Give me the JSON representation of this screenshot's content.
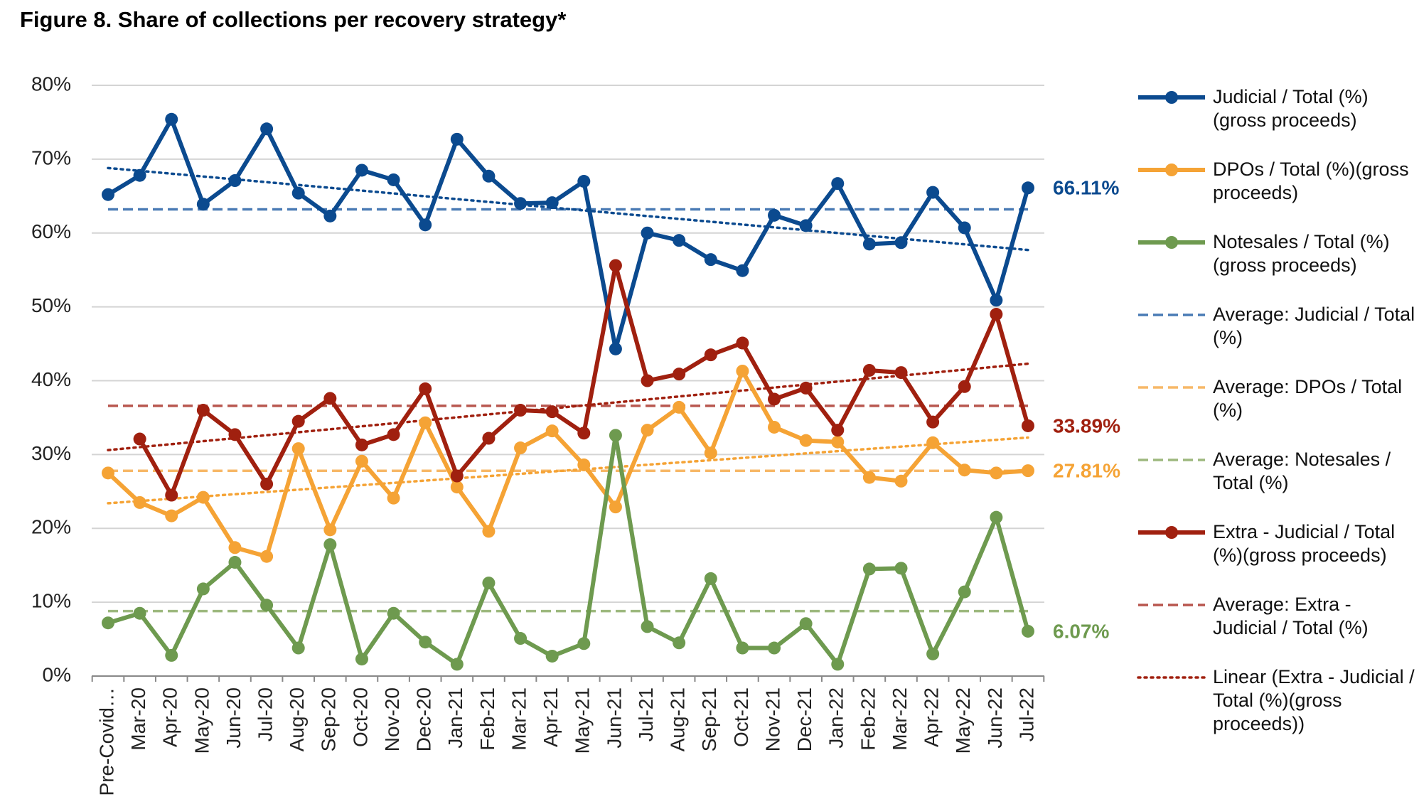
{
  "chart_data": {
    "type": "line",
    "title": "Figure 8. Share of collections per recovery strategy*",
    "categories": [
      "Pre-Covid…",
      "Mar-20",
      "Apr-20",
      "May-20",
      "Jun-20",
      "Jul-20",
      "Aug-20",
      "Sep-20",
      "Oct-20",
      "Nov-20",
      "Dec-20",
      "Jan-21",
      "Feb-21",
      "Mar-21",
      "Apr-21",
      "May-21",
      "Jun-21",
      "Jul-21",
      "Aug-21",
      "Sep-21",
      "Oct-21",
      "Nov-21",
      "Dec-21",
      "Jan-22",
      "Feb-22",
      "Mar-22",
      "Apr-22",
      "May-22",
      "Jun-22",
      "Jul-22"
    ],
    "ylim": [
      0,
      80
    ],
    "yticks": [
      {
        "value": 0,
        "label": "0%"
      },
      {
        "value": 10,
        "label": "10%"
      },
      {
        "value": 20,
        "label": "20%"
      },
      {
        "value": 30,
        "label": "30%"
      },
      {
        "value": 40,
        "label": "40%"
      },
      {
        "value": 50,
        "label": "50%"
      },
      {
        "value": 60,
        "label": "60%"
      },
      {
        "value": 70,
        "label": "70%"
      },
      {
        "value": 80,
        "label": "80%"
      }
    ],
    "grid": true,
    "legend": "right",
    "series": [
      {
        "name": "Judicial / Total (%)(gross proceeds)",
        "color": "#0b4a8f",
        "end_label": "66.11%",
        "values": [
          65.2,
          67.8,
          75.4,
          63.9,
          67.1,
          74.1,
          65.4,
          62.3,
          68.5,
          67.2,
          61.1,
          72.7,
          67.7,
          64.0,
          64.1,
          67.0,
          44.3,
          60.0,
          59.0,
          56.4,
          54.9,
          62.4,
          61.0,
          66.7,
          58.5,
          58.7,
          65.5,
          60.7,
          50.9,
          66.11
        ]
      },
      {
        "name": "DPOs / Total (%)(gross proceeds)",
        "color": "#f5a335",
        "end_label": "27.81%",
        "values": [
          27.5,
          23.5,
          21.7,
          24.2,
          17.4,
          16.2,
          30.8,
          19.8,
          29.1,
          24.1,
          34.3,
          25.6,
          19.6,
          30.9,
          33.2,
          28.6,
          22.9,
          33.3,
          36.4,
          30.2,
          41.3,
          33.7,
          31.9,
          31.7,
          26.9,
          26.4,
          31.6,
          27.9,
          27.5,
          27.81
        ]
      },
      {
        "name": "Notesales / Total (%)(gross proceeds)",
        "color": "#6e9a4f",
        "end_label": "6.07%",
        "values": [
          7.2,
          8.5,
          2.8,
          11.8,
          15.4,
          9.6,
          3.8,
          17.8,
          2.3,
          8.5,
          4.6,
          1.6,
          12.6,
          5.1,
          2.7,
          4.4,
          32.6,
          6.7,
          4.5,
          13.2,
          3.8,
          3.8,
          7.1,
          1.6,
          14.5,
          14.6,
          3.0,
          11.4,
          21.5,
          6.07
        ]
      },
      {
        "name": "Extra - Judicial / Total (%)(gross proceeds)",
        "color": "#a0200f",
        "end_label": "33.89%",
        "values": [
          null,
          32.1,
          24.5,
          36.0,
          32.7,
          26.0,
          34.5,
          37.6,
          31.3,
          32.7,
          38.9,
          27.1,
          32.2,
          36.0,
          35.8,
          32.9,
          55.6,
          40.0,
          40.9,
          43.5,
          45.1,
          37.5,
          39.0,
          33.3,
          41.4,
          41.1,
          34.4,
          39.2,
          49.0,
          33.89
        ]
      }
    ],
    "averages": [
      {
        "name": "Average: Judicial / Total (%)",
        "color": "#4a7bb5",
        "value": 63.2
      },
      {
        "name": "Average: DPOs / Total (%)",
        "color": "#f7b868",
        "value": 27.8
      },
      {
        "name": "Average: Notesales / Total (%)",
        "color": "#9db87e",
        "value": 8.8
      },
      {
        "name": "Average: Extra - Judicial / Total (%)",
        "color": "#b8564e",
        "value": 36.6
      }
    ],
    "trendlines": [
      {
        "color": "#0b4a8f",
        "values": [
          68.8,
          57.7
        ]
      },
      {
        "color": "#f5a335",
        "values": [
          23.4,
          32.3
        ]
      },
      {
        "name": "Linear (Extra - Judicial / Total (%)(gross proceeds))",
        "color": "#a0200f",
        "values": [
          30.6,
          42.3
        ]
      }
    ]
  }
}
